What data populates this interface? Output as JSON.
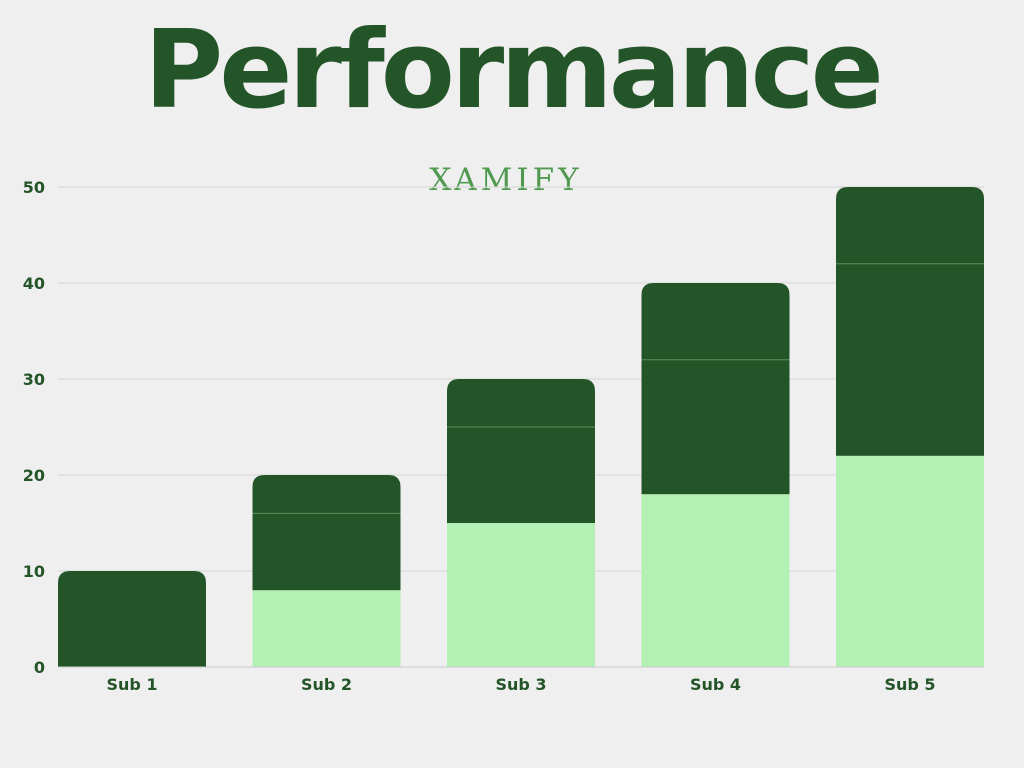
{
  "header": {
    "title": "Performance",
    "subtitle": "XAMIFY"
  },
  "colors": {
    "background": "#efefef",
    "dark_green": "#245528",
    "light_green": "#b3f0b3",
    "grid": "#d6d6d6",
    "subtitle": "#4f9a4f"
  },
  "chart_data": {
    "type": "bar",
    "stacked": true,
    "categories": [
      "Sub 1",
      "Sub 2",
      "Sub 3",
      "Sub 4",
      "Sub 5"
    ],
    "series": [
      {
        "values": [
          0,
          8,
          15,
          18,
          22
        ],
        "color": "#b3f0b3"
      },
      {
        "values": [
          10,
          8,
          10,
          14,
          20
        ],
        "color": "#245528"
      },
      {
        "values": [
          0,
          4,
          5,
          8,
          8
        ],
        "color": "#245528"
      }
    ],
    "totals": [
      10,
      20,
      30,
      40,
      50
    ],
    "ylim": [
      0,
      50
    ],
    "yticks": [
      0,
      10,
      20,
      30,
      40,
      50
    ],
    "grid": true,
    "legend": "none"
  }
}
